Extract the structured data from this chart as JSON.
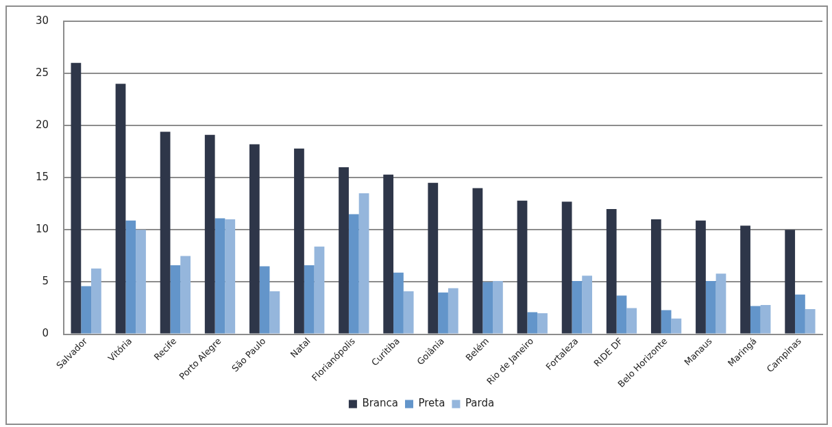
{
  "chart_data": {
    "type": "bar",
    "categories": [
      "Salvador",
      "Vitória",
      "Recife",
      "Porto Alegre",
      "São Paulo",
      "Natal",
      "Florianópolis",
      "Curitiba",
      "Goiânia",
      "Belém",
      "Rio de Janeiro",
      "Fortaleza",
      "RIDE DF",
      "Belo Horizonte",
      "Manaus",
      "Maringá",
      "Campinas"
    ],
    "series": [
      {
        "name": "Branca",
        "color": "#2e3649",
        "values": [
          26,
          24,
          19.4,
          19.1,
          18.2,
          17.8,
          16,
          15.3,
          14.5,
          14,
          12.8,
          12.7,
          12,
          11,
          10.9,
          10.4,
          10
        ]
      },
      {
        "name": "Preta",
        "color": "#6395ca",
        "values": [
          4.6,
          10.9,
          6.6,
          11.1,
          6.5,
          6.6,
          11.5,
          5.9,
          4,
          5,
          2.1,
          5.1,
          3.7,
          2.3,
          5.1,
          2.7,
          3.8
        ]
      },
      {
        "name": "Parda",
        "color": "#95b6dc",
        "values": [
          6.3,
          10,
          7.5,
          11,
          4.1,
          8.4,
          13.5,
          4.1,
          4.4,
          5.1,
          2,
          5.6,
          2.5,
          1.5,
          5.8,
          2.8,
          2.4
        ]
      }
    ],
    "ylim": [
      0,
      30
    ],
    "yticks": [
      0,
      5,
      10,
      15,
      20,
      25,
      30
    ],
    "grid": "y",
    "legend": "bottom"
  }
}
